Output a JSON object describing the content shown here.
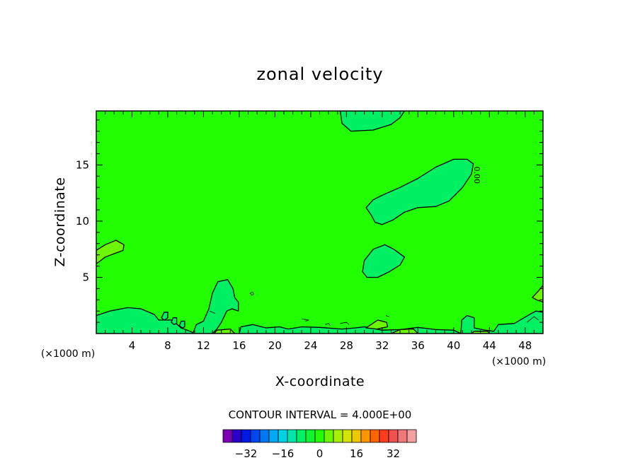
{
  "chart_data": {
    "type": "heatmap",
    "title": "zonal velocity",
    "xlabel": "X-coordinate",
    "ylabel": "Z-coordinate",
    "x_unit": "(×1000 m)",
    "y_unit": "(×1000 m)",
    "xlim": [
      0,
      50
    ],
    "ylim": [
      0,
      19.8
    ],
    "x_ticks": [
      4,
      8,
      12,
      16,
      20,
      24,
      28,
      32,
      36,
      40,
      44,
      48
    ],
    "y_ticks": [
      5,
      10,
      15
    ],
    "background_level_color": "#22ff00",
    "contour_interval_label": "CONTOUR INTERVAL = 4.000E+00",
    "contour_label": "0.00",
    "colorbar": {
      "colors": [
        "#7b00b4",
        "#2a00c8",
        "#0018e6",
        "#0046f0",
        "#0078f5",
        "#00a8f5",
        "#00d2e6",
        "#00e6aa",
        "#00f064",
        "#10f530",
        "#22ff00",
        "#6ef500",
        "#a8f000",
        "#d2e600",
        "#f0c800",
        "#ff9600",
        "#ff6400",
        "#ff3c1e",
        "#f05050",
        "#f07878",
        "#f5a0a0"
      ],
      "tick_values": [
        -32,
        -16,
        0,
        16,
        32
      ],
      "tick_labels": [
        "−32",
        "−16",
        "0",
        "16",
        "32"
      ]
    },
    "regions": [
      {
        "name": "upper-center",
        "level": 4,
        "color": "#00f064",
        "points": [
          [
            27.3,
            19.8
          ],
          [
            27.5,
            18.7
          ],
          [
            28.5,
            18.0
          ],
          [
            31,
            18.1
          ],
          [
            33,
            18.6
          ],
          [
            34,
            19.2
          ],
          [
            34.5,
            19.8
          ]
        ]
      },
      {
        "name": "elongated-feature",
        "level": 4,
        "color": "#00f064",
        "points": [
          [
            30.2,
            11.2
          ],
          [
            30.8,
            10.5
          ],
          [
            31.2,
            9.9
          ],
          [
            32,
            9.7
          ],
          [
            33.2,
            10.1
          ],
          [
            34.5,
            10.8
          ],
          [
            36,
            11.2
          ],
          [
            38,
            11.3
          ],
          [
            39.5,
            11.8
          ],
          [
            41,
            13
          ],
          [
            42,
            14.2
          ],
          [
            42.2,
            15.1
          ],
          [
            41.5,
            15.5
          ],
          [
            40,
            15.5
          ],
          [
            38,
            14.8
          ],
          [
            36,
            13.8
          ],
          [
            34,
            13
          ],
          [
            32,
            12.3
          ],
          [
            31,
            11.9
          ]
        ]
      },
      {
        "name": "mid-feature",
        "level": 4,
        "color": "#00f064",
        "points": [
          [
            29.8,
            5.5
          ],
          [
            30,
            6.5
          ],
          [
            31,
            7.5
          ],
          [
            32.3,
            7.9
          ],
          [
            33.3,
            7.5
          ],
          [
            34.5,
            6.8
          ],
          [
            34,
            6.1
          ],
          [
            32.8,
            5.5
          ],
          [
            31.5,
            5.0
          ],
          [
            30.3,
            5.0
          ]
        ]
      },
      {
        "name": "bottom-left",
        "level": 4,
        "color": "#00f064",
        "points": [
          [
            0,
            0
          ],
          [
            0,
            1.6
          ],
          [
            1.5,
            2.0
          ],
          [
            3.5,
            2.3
          ],
          [
            5,
            2.2
          ],
          [
            6.5,
            1.7
          ],
          [
            7,
            1.2
          ],
          [
            8.5,
            1.2
          ],
          [
            9.5,
            0.5
          ],
          [
            10.5,
            0.2
          ],
          [
            11,
            0
          ]
        ]
      },
      {
        "name": "plume",
        "level": 4,
        "color": "#00f064",
        "points": [
          [
            10.8,
            0
          ],
          [
            11.2,
            0.8
          ],
          [
            12,
            1.1
          ],
          [
            12.6,
            2.2
          ],
          [
            13,
            3.6
          ],
          [
            13.6,
            4.6
          ],
          [
            14.7,
            4.8
          ],
          [
            15.3,
            4.0
          ],
          [
            15.5,
            3.2
          ],
          [
            15.9,
            2.8
          ],
          [
            15.9,
            2.0
          ],
          [
            15.2,
            2.2
          ],
          [
            14.6,
            2.0
          ],
          [
            14.0,
            1.0
          ],
          [
            13.5,
            0.4
          ],
          [
            13,
            0
          ]
        ]
      },
      {
        "name": "bottom-right",
        "level": 4,
        "color": "#00f064",
        "points": [
          [
            40.8,
            0
          ],
          [
            40.9,
            1.2
          ],
          [
            41.5,
            1.6
          ],
          [
            42.3,
            1.4
          ],
          [
            42.3,
            0.5
          ],
          [
            43.5,
            0.3
          ],
          [
            44.5,
            0.2
          ],
          [
            45,
            0.8
          ],
          [
            46.8,
            0.9
          ],
          [
            48.5,
            1.7
          ],
          [
            49.2,
            2.0
          ],
          [
            50,
            1.9
          ],
          [
            50,
            0
          ]
        ]
      },
      {
        "name": "left-edge-patch",
        "level": -4,
        "color": "#6ef500",
        "points": [
          [
            0,
            6.2
          ],
          [
            1,
            6.8
          ],
          [
            2,
            7.1
          ],
          [
            3,
            7.4
          ],
          [
            3.1,
            7.9
          ],
          [
            2.2,
            8.3
          ],
          [
            1,
            7.9
          ],
          [
            0,
            7.4
          ]
        ]
      },
      {
        "name": "right-edge-patch",
        "level": -4,
        "color": "#6ef500",
        "points": [
          [
            48.8,
            3.2
          ],
          [
            49.5,
            3.8
          ],
          [
            50,
            4.3
          ],
          [
            50,
            2.8
          ],
          [
            49.3,
            3.0
          ]
        ]
      },
      {
        "name": "small-eddy-1",
        "level": 4,
        "color": "#00f064",
        "points": [
          [
            7.3,
            1.4
          ],
          [
            7.6,
            1.9
          ],
          [
            8.0,
            1.9
          ],
          [
            8.0,
            1.4
          ],
          [
            7.6,
            1.2
          ]
        ]
      },
      {
        "name": "small-eddy-2",
        "level": 4,
        "color": "#00f064",
        "points": [
          [
            8.4,
            1.0
          ],
          [
            8.6,
            1.4
          ],
          [
            9.0,
            1.4
          ],
          [
            9.0,
            0.9
          ],
          [
            8.7,
            0.8
          ]
        ]
      },
      {
        "name": "small-eddy-3",
        "level": 4,
        "color": "#00f064",
        "points": [
          [
            9.3,
            0.7
          ],
          [
            9.5,
            1.1
          ],
          [
            9.9,
            1.1
          ],
          [
            9.9,
            0.6
          ],
          [
            9.6,
            0.5
          ]
        ]
      },
      {
        "name": "bottom-mid-band",
        "level": 4,
        "color": "#00f064",
        "points": [
          [
            16,
            0
          ],
          [
            16.2,
            0.6
          ],
          [
            17.5,
            0.8
          ],
          [
            19,
            0.5
          ],
          [
            20.5,
            0.6
          ],
          [
            21.5,
            0.4
          ],
          [
            23,
            0.6
          ],
          [
            25,
            0.55
          ],
          [
            27.5,
            0.4
          ],
          [
            29,
            0.5
          ],
          [
            30,
            0.6
          ],
          [
            32,
            0.3
          ],
          [
            34,
            0.35
          ],
          [
            36,
            0.55
          ],
          [
            38,
            0.35
          ],
          [
            40,
            0.3
          ],
          [
            40.8,
            0
          ]
        ]
      },
      {
        "name": "bottom-lighter-1",
        "level": -4,
        "color": "#6ef500",
        "points": [
          [
            30.2,
            0.5
          ],
          [
            31.5,
            1.2
          ],
          [
            32.5,
            1.0
          ],
          [
            32.6,
            0.6
          ],
          [
            31.4,
            0.4
          ]
        ]
      },
      {
        "name": "bottom-lighter-2",
        "level": -4,
        "color": "#6ef500",
        "points": [
          [
            33,
            0
          ],
          [
            34,
            0.35
          ],
          [
            35.5,
            0.4
          ],
          [
            36,
            0
          ]
        ]
      },
      {
        "name": "bottom-lighter-3",
        "level": -4,
        "color": "#6ef500",
        "points": [
          [
            13.2,
            0
          ],
          [
            13.5,
            0.3
          ],
          [
            15,
            0.4
          ],
          [
            15.5,
            0
          ]
        ]
      },
      {
        "name": "bottom-lighter-4",
        "level": -4,
        "color": "#6ef500",
        "points": [
          [
            42,
            0
          ],
          [
            42.3,
            0.2
          ],
          [
            43.8,
            0.2
          ],
          [
            44,
            0
          ]
        ]
      }
    ],
    "lines": [
      {
        "name": "thin-contour-1",
        "points": [
          [
            17.2,
            3.6
          ],
          [
            17.5,
            3.7
          ],
          [
            17.6,
            3.5
          ],
          [
            17.4,
            3.4
          ]
        ],
        "closed": true
      },
      {
        "name": "thin-contour-2",
        "points": [
          [
            23,
            1.3
          ],
          [
            23.8,
            1.2
          ],
          [
            23.4,
            1.1
          ]
        ],
        "closed": false
      },
      {
        "name": "thin-contour-3",
        "points": [
          [
            25.6,
            0.8
          ],
          [
            26,
            0.9
          ],
          [
            26.2,
            0.7
          ]
        ],
        "closed": false
      },
      {
        "name": "thin-contour-4",
        "points": [
          [
            27.3,
            0.9
          ],
          [
            28,
            1.0
          ],
          [
            28.3,
            0.8
          ]
        ],
        "closed": false
      },
      {
        "name": "thin-contour-5",
        "points": [
          [
            32.4,
            1.6
          ],
          [
            32.8,
            1.5
          ]
        ],
        "closed": false
      },
      {
        "name": "thin-contour-6",
        "points": [
          [
            48.2,
            1.0
          ],
          [
            49,
            1.5
          ],
          [
            49.5,
            1.2
          ]
        ],
        "closed": false
      },
      {
        "name": "thin-contour-7",
        "points": [
          [
            12.7,
            2.0
          ],
          [
            13.3,
            1.8
          ]
        ],
        "closed": false
      }
    ]
  }
}
